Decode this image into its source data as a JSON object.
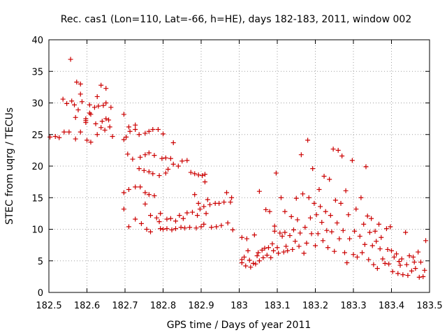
{
  "chart_data": {
    "type": "scatter",
    "title": "Rec. cas1 (Lon=110, Lat=-66, h=HE), days 182-183, 2011, window 002",
    "xlabel": "GPS time / Days of year 2011",
    "ylabel": "STEC from uqrg / TECUs",
    "xlim": [
      182.5,
      183.5
    ],
    "ylim": [
      0,
      40
    ],
    "x_ticks": [
      182.5,
      182.6,
      182.7,
      182.8,
      182.9,
      183,
      183.1,
      183.2,
      183.3,
      183.4,
      183.5
    ],
    "x_tick_labels": [
      "182.5",
      "182.6",
      "182.7",
      "182.8",
      "182.9",
      "183",
      "183.1",
      "183.2",
      "183.3",
      "183.4",
      "183.5"
    ],
    "y_ticks": [
      0,
      5,
      10,
      15,
      20,
      25,
      30,
      35,
      40
    ],
    "y_tick_labels": [
      "0",
      "5",
      "10",
      "15",
      "20",
      "25",
      "30",
      "35",
      "40"
    ],
    "grid": true,
    "marker": "plus",
    "color": "#cc0000",
    "points": [
      [
        182.503,
        24.6
      ],
      [
        182.517,
        24.7
      ],
      [
        182.527,
        24.5
      ],
      [
        182.537,
        30.6
      ],
      [
        182.54,
        25.4
      ],
      [
        182.547,
        29.9
      ],
      [
        182.553,
        25.4
      ],
      [
        182.557,
        36.9
      ],
      [
        182.56,
        30.3
      ],
      [
        182.567,
        29.7
      ],
      [
        182.57,
        27.7
      ],
      [
        182.57,
        24.3
      ],
      [
        182.573,
        33.3
      ],
      [
        182.577,
        28.9
      ],
      [
        182.583,
        33.0
      ],
      [
        182.583,
        31.4
      ],
      [
        182.587,
        30.2
      ],
      [
        182.583,
        25.4
      ],
      [
        182.597,
        27.5
      ],
      [
        182.597,
        26.9
      ],
      [
        182.597,
        27.2
      ],
      [
        182.6,
        24.1
      ],
      [
        182.607,
        29.7
      ],
      [
        182.607,
        28.4
      ],
      [
        182.61,
        28.2
      ],
      [
        182.61,
        23.8
      ],
      [
        182.62,
        29.3
      ],
      [
        182.623,
        26.7
      ],
      [
        182.627,
        31.0
      ],
      [
        182.627,
        25.0
      ],
      [
        182.63,
        29.5
      ],
      [
        182.637,
        32.8
      ],
      [
        182.637,
        26.1
      ],
      [
        182.64,
        27.1
      ],
      [
        182.643,
        29.6
      ],
      [
        182.647,
        25.7
      ],
      [
        182.65,
        32.3
      ],
      [
        182.65,
        30.0
      ],
      [
        182.65,
        27.5
      ],
      [
        182.657,
        27.3
      ],
      [
        182.66,
        26.2
      ],
      [
        182.663,
        29.3
      ],
      [
        182.667,
        24.7
      ],
      [
        182.697,
        28.2
      ],
      [
        182.697,
        24.2
      ],
      [
        182.697,
        15.8
      ],
      [
        182.697,
        13.2
      ],
      [
        182.703,
        24.6
      ],
      [
        182.707,
        21.9
      ],
      [
        182.71,
        26.2
      ],
      [
        182.71,
        16.3
      ],
      [
        182.71,
        10.4
      ],
      [
        182.713,
        25.5
      ],
      [
        182.72,
        21.1
      ],
      [
        182.727,
        26.5
      ],
      [
        182.727,
        25.8
      ],
      [
        182.727,
        16.7
      ],
      [
        182.727,
        11.6
      ],
      [
        182.737,
        25.0
      ],
      [
        182.737,
        19.6
      ],
      [
        182.74,
        21.4
      ],
      [
        182.74,
        16.7
      ],
      [
        182.743,
        10.9
      ],
      [
        182.75,
        19.3
      ],
      [
        182.753,
        25.2
      ],
      [
        182.753,
        21.8
      ],
      [
        182.753,
        15.8
      ],
      [
        182.753,
        14.0
      ],
      [
        182.757,
        10.0
      ],
      [
        182.763,
        25.5
      ],
      [
        182.763,
        22.1
      ],
      [
        182.763,
        19.1
      ],
      [
        182.763,
        15.5
      ],
      [
        182.767,
        12.2
      ],
      [
        182.767,
        9.6
      ],
      [
        182.773,
        25.8
      ],
      [
        182.773,
        18.8
      ],
      [
        182.777,
        21.7
      ],
      [
        182.777,
        15.3
      ],
      [
        182.783,
        11.8
      ],
      [
        182.787,
        25.8
      ],
      [
        182.79,
        18.5
      ],
      [
        182.79,
        11.2
      ],
      [
        182.793,
        12.5
      ],
      [
        182.793,
        10.1
      ],
      [
        182.797,
        21.2
      ],
      [
        182.8,
        25.1
      ],
      [
        182.8,
        10.0
      ],
      [
        182.807,
        21.3
      ],
      [
        182.807,
        18.9
      ],
      [
        182.81,
        11.6
      ],
      [
        182.81,
        10.1
      ],
      [
        182.813,
        19.5
      ],
      [
        182.82,
        21.2
      ],
      [
        182.82,
        11.7
      ],
      [
        182.823,
        9.9
      ],
      [
        182.827,
        23.7
      ],
      [
        182.827,
        20.3
      ],
      [
        182.833,
        11.3
      ],
      [
        182.833,
        10.1
      ],
      [
        182.84,
        20.0
      ],
      [
        182.843,
        12.2
      ],
      [
        182.847,
        10.3
      ],
      [
        182.85,
        20.8
      ],
      [
        182.853,
        11.7
      ],
      [
        182.857,
        10.2
      ],
      [
        182.863,
        20.9
      ],
      [
        182.863,
        12.6
      ],
      [
        182.87,
        10.3
      ],
      [
        182.873,
        19.0
      ],
      [
        182.877,
        12.7
      ],
      [
        182.883,
        18.8
      ],
      [
        182.883,
        15.5
      ],
      [
        182.887,
        10.2
      ],
      [
        182.89,
        12.2
      ],
      [
        182.893,
        18.6
      ],
      [
        182.893,
        14.1
      ],
      [
        182.897,
        13.2
      ],
      [
        182.9,
        10.4
      ],
      [
        182.903,
        18.5
      ],
      [
        182.907,
        13.6
      ],
      [
        182.907,
        10.8
      ],
      [
        182.91,
        18.7
      ],
      [
        182.91,
        17.5
      ],
      [
        182.913,
        12.5
      ],
      [
        182.917,
        14.7
      ],
      [
        182.923,
        13.9
      ],
      [
        182.927,
        10.3
      ],
      [
        182.937,
        14.1
      ],
      [
        182.94,
        10.4
      ],
      [
        182.947,
        14.1
      ],
      [
        182.953,
        10.6
      ],
      [
        182.96,
        14.3
      ],
      [
        182.967,
        15.8
      ],
      [
        182.97,
        11.0
      ],
      [
        182.977,
        14.3
      ],
      [
        182.98,
        15.0
      ],
      [
        182.983,
        9.9
      ],
      [
        183.007,
        5.2
      ],
      [
        183.007,
        4.7
      ],
      [
        183.007,
        8.7
      ],
      [
        183.013,
        5.6
      ],
      [
        183.017,
        4.2
      ],
      [
        183.02,
        8.5
      ],
      [
        183.023,
        6.6
      ],
      [
        183.027,
        5.1
      ],
      [
        183.03,
        4.0
      ],
      [
        183.037,
        4.6
      ],
      [
        183.04,
        9.1
      ],
      [
        183.043,
        4.5
      ],
      [
        183.047,
        5.8
      ],
      [
        183.05,
        6.3
      ],
      [
        183.053,
        16.0
      ],
      [
        183.053,
        5.0
      ],
      [
        183.06,
        6.7
      ],
      [
        183.063,
        5.5
      ],
      [
        183.067,
        7.0
      ],
      [
        183.07,
        13.1
      ],
      [
        183.073,
        5.9
      ],
      [
        183.077,
        7.1
      ],
      [
        183.08,
        12.8
      ],
      [
        183.083,
        5.5
      ],
      [
        183.087,
        7.7
      ],
      [
        183.09,
        6.6
      ],
      [
        183.093,
        10.5
      ],
      [
        183.093,
        9.7
      ],
      [
        183.097,
        18.9
      ],
      [
        183.1,
        7.1
      ],
      [
        183.103,
        6.2
      ],
      [
        183.107,
        9.4
      ],
      [
        183.11,
        15.0
      ],
      [
        183.113,
        8.9
      ],
      [
        183.117,
        6.4
      ],
      [
        183.12,
        12.8
      ],
      [
        183.12,
        9.5
      ],
      [
        183.123,
        7.3
      ],
      [
        183.127,
        6.6
      ],
      [
        183.133,
        9.0
      ],
      [
        183.137,
        12.0
      ],
      [
        183.14,
        6.8
      ],
      [
        183.143,
        9.9
      ],
      [
        183.147,
        8.1
      ],
      [
        183.15,
        14.9
      ],
      [
        183.153,
        11.5
      ],
      [
        183.157,
        7.3
      ],
      [
        183.16,
        9.4
      ],
      [
        183.163,
        21.8
      ],
      [
        183.167,
        15.6
      ],
      [
        183.17,
        6.2
      ],
      [
        183.173,
        10.3
      ],
      [
        183.177,
        7.8
      ],
      [
        183.18,
        24.1
      ],
      [
        183.183,
        15.0
      ],
      [
        183.187,
        11.8
      ],
      [
        183.19,
        9.3
      ],
      [
        183.193,
        19.6
      ],
      [
        183.197,
        14.1
      ],
      [
        183.2,
        7.4
      ],
      [
        183.203,
        12.3
      ],
      [
        183.207,
        9.3
      ],
      [
        183.21,
        16.3
      ],
      [
        183.213,
        13.6
      ],
      [
        183.217,
        11.1
      ],
      [
        183.22,
        8.2
      ],
      [
        183.223,
        18.4
      ],
      [
        183.227,
        12.8
      ],
      [
        183.23,
        9.8
      ],
      [
        183.233,
        7.1
      ],
      [
        183.237,
        17.9
      ],
      [
        183.24,
        12.2
      ],
      [
        183.243,
        9.6
      ],
      [
        183.247,
        22.7
      ],
      [
        183.25,
        6.5
      ],
      [
        183.253,
        14.6
      ],
      [
        183.257,
        11.0
      ],
      [
        183.26,
        22.5
      ],
      [
        183.263,
        8.5
      ],
      [
        183.267,
        14.1
      ],
      [
        183.27,
        21.6
      ],
      [
        183.273,
        9.8
      ],
      [
        183.277,
        6.3
      ],
      [
        183.28,
        16.1
      ],
      [
        183.283,
        4.7
      ],
      [
        183.287,
        12.3
      ],
      [
        183.29,
        8.5
      ],
      [
        183.297,
        20.9
      ],
      [
        183.3,
        6.0
      ],
      [
        183.303,
        9.7
      ],
      [
        183.307,
        13.2
      ],
      [
        183.31,
        5.6
      ],
      [
        183.317,
        8.9
      ],
      [
        183.32,
        15.0
      ],
      [
        183.323,
        6.3
      ],
      [
        183.327,
        10.8
      ],
      [
        183.33,
        7.6
      ],
      [
        183.333,
        19.9
      ],
      [
        183.337,
        12.1
      ],
      [
        183.34,
        5.2
      ],
      [
        183.343,
        9.5
      ],
      [
        183.347,
        11.7
      ],
      [
        183.35,
        7.4
      ],
      [
        183.353,
        4.4
      ],
      [
        183.357,
        9.7
      ],
      [
        183.36,
        8.1
      ],
      [
        183.363,
        3.8
      ],
      [
        183.367,
        10.8
      ],
      [
        183.37,
        6.9
      ],
      [
        183.373,
        8.7
      ],
      [
        183.377,
        5.3
      ],
      [
        183.383,
        4.6
      ],
      [
        183.387,
        10.1
      ],
      [
        183.39,
        6.8
      ],
      [
        183.393,
        4.5
      ],
      [
        183.397,
        10.4
      ],
      [
        183.4,
        6.6
      ],
      [
        183.403,
        3.3
      ],
      [
        183.407,
        5.6
      ],
      [
        183.413,
        6.1
      ],
      [
        183.417,
        3.0
      ],
      [
        183.42,
        4.9
      ],
      [
        183.423,
        4.3
      ],
      [
        183.427,
        5.3
      ],
      [
        183.43,
        2.8
      ],
      [
        183.437,
        9.5
      ],
      [
        183.44,
        4.4
      ],
      [
        183.443,
        2.7
      ],
      [
        183.447,
        5.8
      ],
      [
        183.453,
        3.4
      ],
      [
        183.457,
        5.6
      ],
      [
        183.46,
        4.8
      ],
      [
        183.463,
        3.8
      ],
      [
        183.47,
        6.4
      ],
      [
        183.473,
        2.4
      ],
      [
        183.477,
        4.8
      ],
      [
        183.483,
        2.5
      ],
      [
        183.487,
        3.5
      ],
      [
        183.49,
        8.2
      ]
    ]
  }
}
